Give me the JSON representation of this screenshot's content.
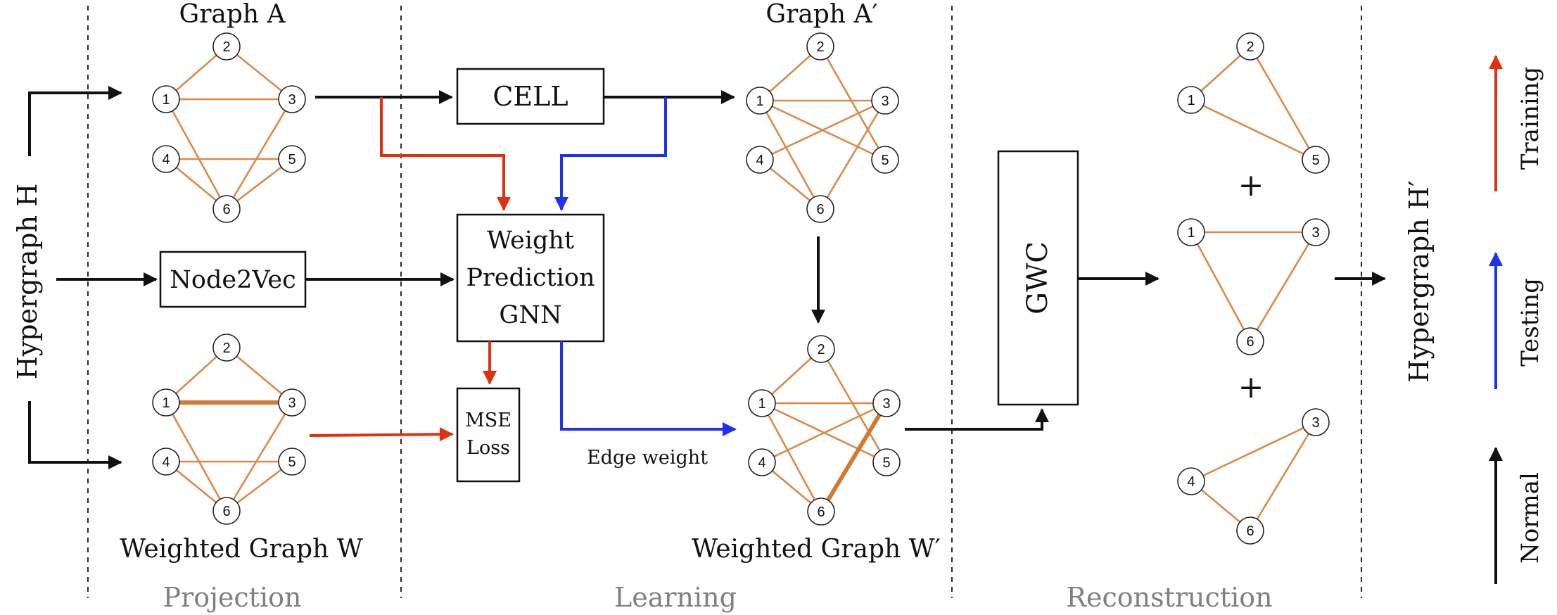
{
  "sections": {
    "projection": "Projection",
    "learning": "Learning",
    "reconstruction": "Reconstruction"
  },
  "labels": {
    "graph_a": "Graph A",
    "graph_a_prime": "Graph A′",
    "weighted_w": "Weighted Graph W",
    "weighted_w_prime": "Weighted Graph W′",
    "hypergraph_h": "Hypergraph H",
    "hypergraph_h_prime": "Hypergraph H′",
    "edge_weight": "Edge weight",
    "plus": "+"
  },
  "boxes": {
    "cell": "CELL",
    "node2vec": "Node2Vec",
    "gnn_line1": "Weight",
    "gnn_line2": "Prediction",
    "gnn_line3": "GNN",
    "mse_line1": "MSE",
    "mse_line2": "Loss",
    "gwc": "GWC"
  },
  "legend": {
    "training": "Training",
    "testing": "Testing",
    "normal": "Normal"
  },
  "colors": {
    "training": "#e03010",
    "testing": "#2030f0",
    "normal": "#111111",
    "edge": "#d98a4a"
  },
  "graphs": {
    "A": {
      "edges": [
        [
          "1",
          "2"
        ],
        [
          "2",
          "3"
        ],
        [
          "1",
          "3"
        ],
        [
          "1",
          "6"
        ],
        [
          "3",
          "6"
        ],
        [
          "4",
          "5"
        ],
        [
          "4",
          "6"
        ],
        [
          "5",
          "6"
        ]
      ],
      "heavy": []
    },
    "W": {
      "edges": [
        [
          "1",
          "2"
        ],
        [
          "2",
          "3"
        ],
        [
          "1",
          "3"
        ],
        [
          "1",
          "6"
        ],
        [
          "3",
          "6"
        ],
        [
          "4",
          "5"
        ],
        [
          "4",
          "6"
        ],
        [
          "5",
          "6"
        ]
      ],
      "heavy": [
        [
          "1",
          "3"
        ]
      ]
    },
    "A_prime": {
      "edges": [
        [
          "1",
          "2"
        ],
        [
          "2",
          "5"
        ],
        [
          "1",
          "3"
        ],
        [
          "1",
          "5"
        ],
        [
          "1",
          "6"
        ],
        [
          "3",
          "4"
        ],
        [
          "3",
          "6"
        ],
        [
          "4",
          "6"
        ]
      ],
      "heavy": []
    },
    "W_prime": {
      "edges": [
        [
          "1",
          "2"
        ],
        [
          "2",
          "5"
        ],
        [
          "1",
          "3"
        ],
        [
          "1",
          "5"
        ],
        [
          "1",
          "6"
        ],
        [
          "3",
          "4"
        ],
        [
          "4",
          "6"
        ]
      ],
      "heavy": [
        [
          "3",
          "6"
        ]
      ]
    },
    "R1": {
      "edges": [
        [
          "1",
          "2"
        ],
        [
          "2",
          "5"
        ],
        [
          "1",
          "5"
        ]
      ],
      "heavy": []
    },
    "R2": {
      "edges": [
        [
          "1",
          "3"
        ],
        [
          "1",
          "6"
        ],
        [
          "3",
          "6"
        ]
      ],
      "heavy": []
    },
    "R3": {
      "edges": [
        [
          "3",
          "4"
        ],
        [
          "4",
          "6"
        ],
        [
          "3",
          "6"
        ]
      ],
      "heavy": []
    }
  }
}
